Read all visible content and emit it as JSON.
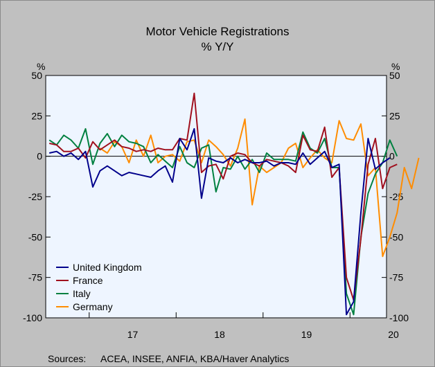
{
  "chart_data": {
    "type": "line",
    "title": "Motor Vehicle Registrations",
    "subtitle": "% Y/Y",
    "ylabel_left": "%",
    "ylabel_right": "%",
    "ylim": [
      -100,
      50
    ],
    "yticks": [
      50,
      25,
      0,
      -25,
      -50,
      -75,
      -100
    ],
    "ytick_labels": [
      "50",
      "25",
      "0",
      "-25",
      "-50",
      "-75",
      "-100"
    ],
    "x_start": 2016.5,
    "x_end": 2020.42,
    "year_labels": [
      {
        "label": "17",
        "year": 2017
      },
      {
        "label": "18",
        "year": 2018
      },
      {
        "label": "19",
        "year": 2019
      },
      {
        "label": "20",
        "year": 2020
      }
    ],
    "months": [
      "2016-07",
      "2016-08",
      "2016-09",
      "2016-10",
      "2016-11",
      "2016-12",
      "2017-01",
      "2017-02",
      "2017-03",
      "2017-04",
      "2017-05",
      "2017-06",
      "2017-07",
      "2017-08",
      "2017-09",
      "2017-10",
      "2017-11",
      "2017-12",
      "2018-01",
      "2018-02",
      "2018-03",
      "2018-04",
      "2018-05",
      "2018-06",
      "2018-07",
      "2018-08",
      "2018-09",
      "2018-10",
      "2018-11",
      "2018-12",
      "2019-01",
      "2019-02",
      "2019-03",
      "2019-04",
      "2019-05",
      "2019-06",
      "2019-07",
      "2019-08",
      "2019-09",
      "2019-10",
      "2019-11",
      "2019-12",
      "2020-01",
      "2020-02",
      "2020-03",
      "2020-04",
      "2020-05",
      "2020-06",
      "2020-07",
      "2020-08",
      "2020-09",
      "2020-10"
    ],
    "series": [
      {
        "name": "United Kingdom",
        "color": "#00008b",
        "values": [
          2,
          3,
          0,
          2,
          -2,
          3,
          -19,
          -9,
          -6,
          -9,
          -12,
          -10,
          -11,
          -12,
          -13,
          -9,
          -6,
          -16,
          11,
          4,
          17,
          -26,
          -1,
          -3,
          -4,
          -1,
          -4,
          -2,
          -4,
          -4,
          -3,
          -6,
          -4,
          -4,
          -5,
          2,
          -5,
          -1,
          3,
          -7,
          -5,
          -98,
          -90,
          -35,
          11,
          -8,
          -4,
          -1
        ],
        "start": 0
      },
      {
        "name": "France",
        "color": "#a0101e",
        "values": [
          8,
          7,
          3,
          3,
          5,
          -1,
          9,
          4,
          7,
          10,
          6,
          5,
          3,
          4,
          3,
          5,
          4,
          4,
          11,
          10,
          39,
          -10,
          -6,
          -5,
          -14,
          0,
          2,
          1,
          -4,
          -6,
          -2,
          -3,
          -4,
          -6,
          -10,
          13,
          4,
          3,
          18,
          -13,
          -7,
          -75,
          -89,
          -51,
          -5,
          11,
          -20,
          -7,
          -5
        ],
        "start": 0
      },
      {
        "name": "Italy",
        "color": "#008040",
        "values": [
          10,
          7,
          13,
          10,
          5,
          17,
          -5,
          8,
          14,
          6,
          13,
          9,
          8,
          6,
          -4,
          1,
          -3,
          -7,
          6,
          -4,
          -7,
          5,
          7,
          -22,
          -7,
          -8,
          0,
          -8,
          -2,
          -10,
          2,
          -2,
          -2,
          -2,
          -3,
          15,
          5,
          2,
          11,
          -7,
          -7,
          -85,
          -98,
          -50,
          -23,
          -11,
          -4,
          10,
          0
        ],
        "start": 0
      },
      {
        "name": "Germany",
        "color": "#ff8c00",
        "values": [
          5,
          2,
          9,
          6,
          -4,
          10,
          0,
          13,
          -4,
          0,
          1,
          -3,
          9,
          10,
          -4,
          10,
          6,
          1,
          -6,
          5,
          23,
          -30,
          -6,
          -10,
          -7,
          -4,
          5,
          8,
          -7,
          -1,
          4,
          -1,
          -4,
          22,
          11,
          10,
          20,
          -12,
          -7,
          -62,
          -50,
          -35,
          -7,
          -20,
          -1
        ],
        "start": 7
      }
    ],
    "legend_placement": "bottom-left",
    "grid": false,
    "zero_line": true,
    "sources_label": "Sources:",
    "sources_text": "ACEA, INSEE, ANFIA, KBA/Haver Analytics"
  }
}
